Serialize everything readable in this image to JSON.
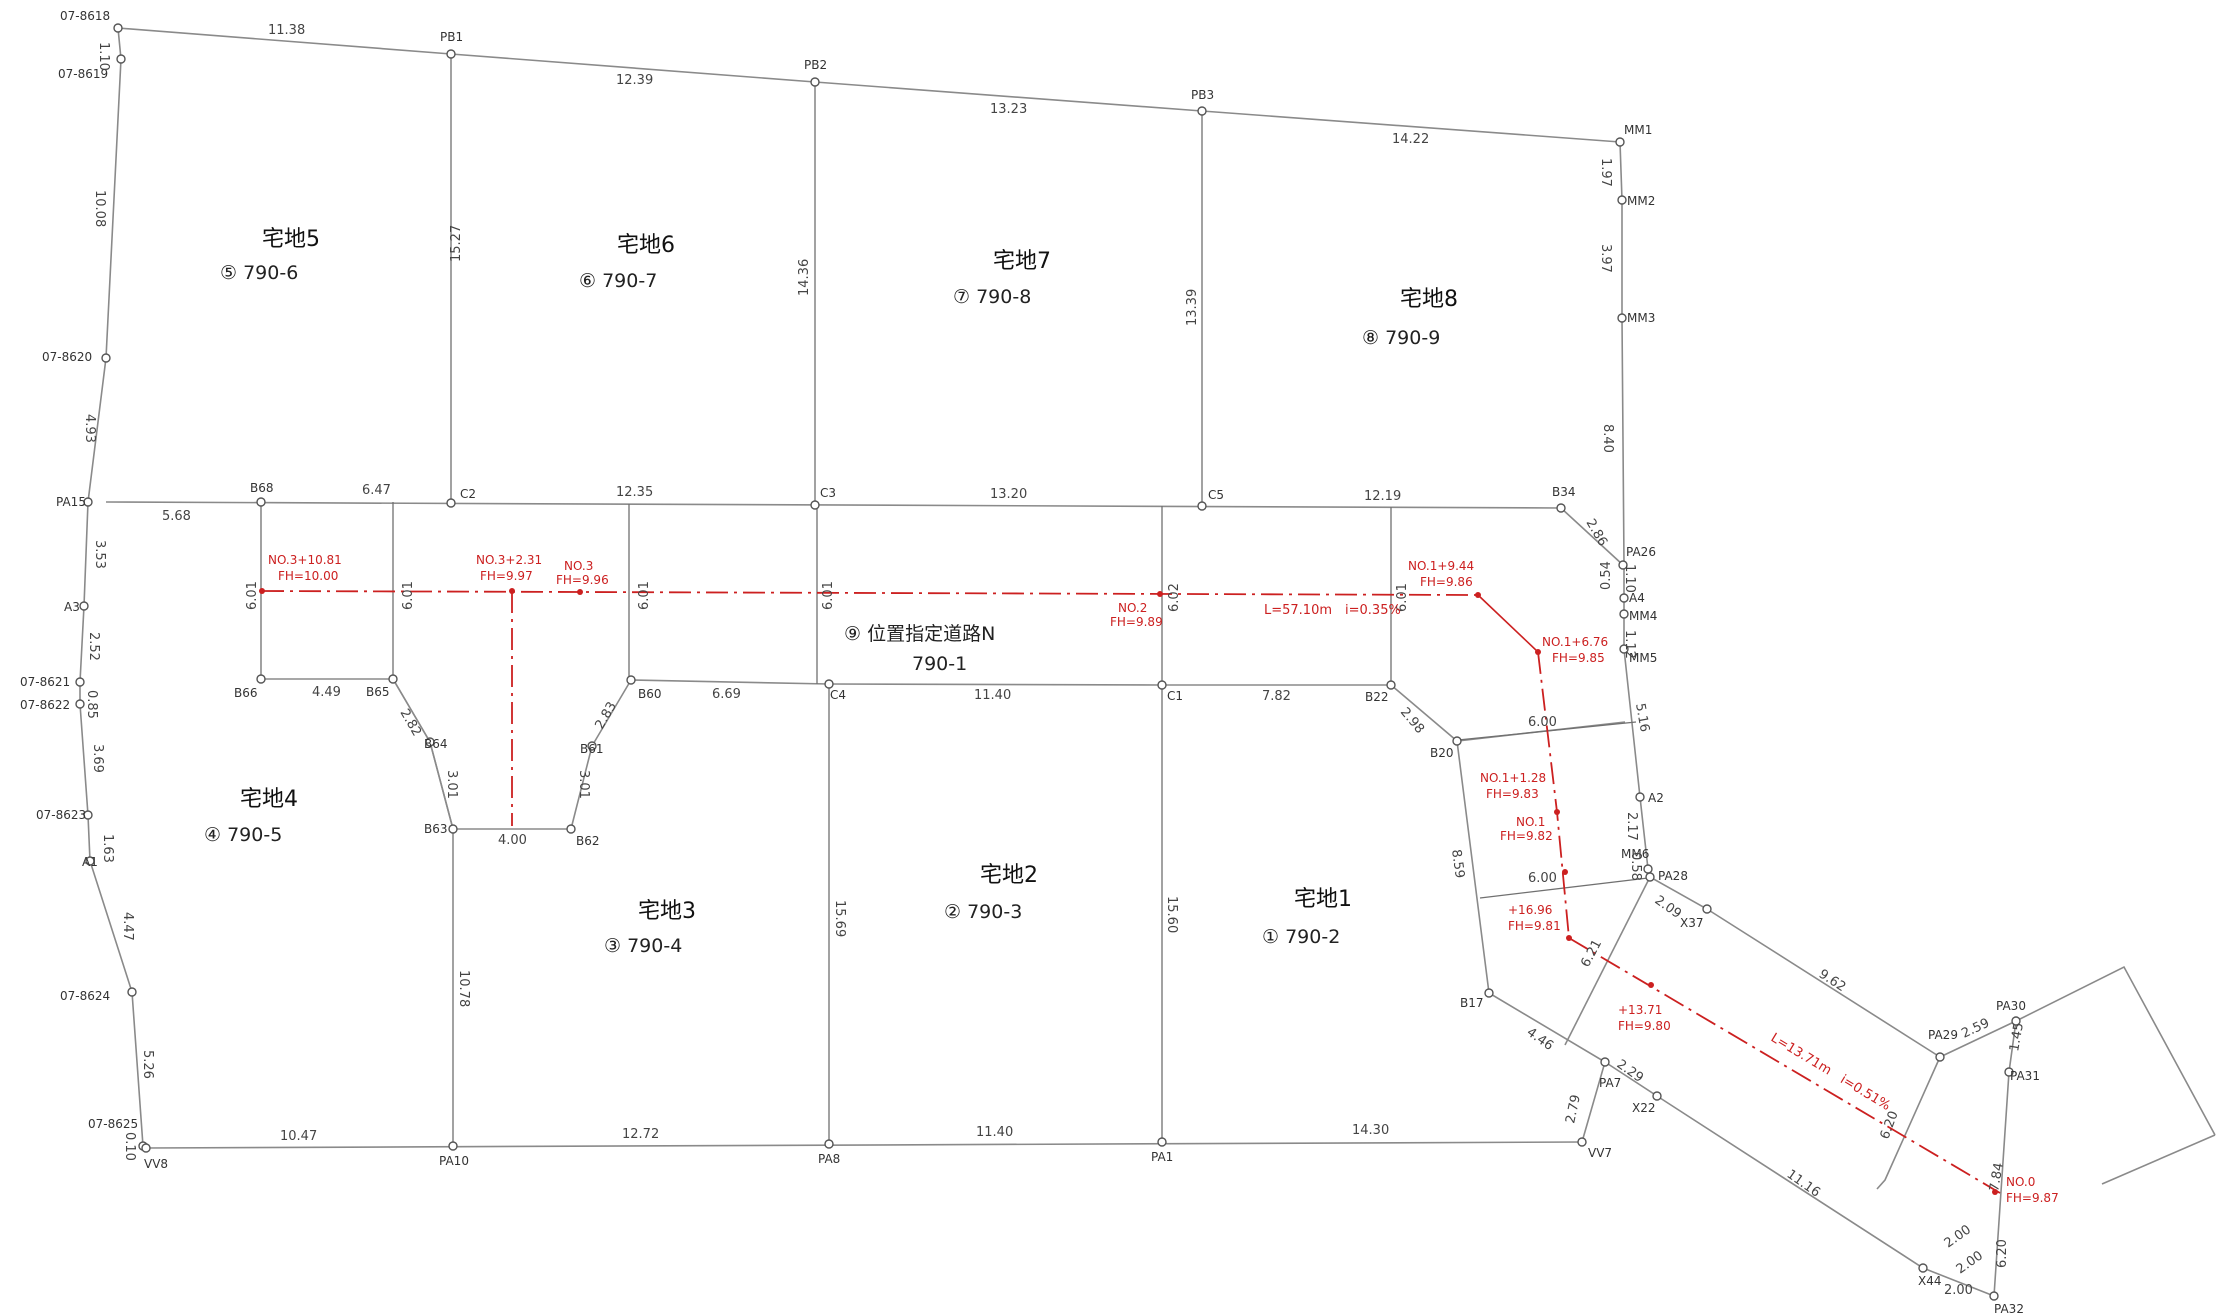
{
  "points": [
    "07-8618",
    "07-8619",
    "07-8620",
    "PA15",
    "A3",
    "07-8621",
    "07-8622",
    "07-8623",
    "A1",
    "07-8624",
    "07-8625",
    "VV8",
    "PB1",
    "PB2",
    "PB3",
    "MM1",
    "MM2",
    "MM3",
    "B34",
    "PA26",
    "A4",
    "MM4",
    "MM5",
    "A2",
    "MM6",
    "PA28",
    "B68",
    "C2",
    "C3",
    "C5",
    "B66",
    "B65",
    "B64",
    "B63",
    "B62",
    "B61",
    "B60",
    "C4",
    "C1",
    "B22",
    "B20",
    "B17",
    "PA10",
    "PA8",
    "PA1",
    "VV7",
    "PA7",
    "X22",
    "X37",
    "PA29",
    "PA30",
    "PA31",
    "X44",
    "PA32"
  ],
  "dimensions": [
    "11.38",
    "12.39",
    "13.23",
    "14.22",
    "1.10",
    "10.08",
    "4.93",
    "3.53",
    "2.52",
    "0.85",
    "3.69",
    "1.63",
    "4.47",
    "5.26",
    "0.10",
    "15.27",
    "14.36",
    "13.39",
    "1.97",
    "3.97",
    "8.40",
    "2.86",
    "1.10",
    "0.54",
    "1.12",
    "5.16",
    "2.17",
    "0.58",
    "5.68",
    "6.47",
    "12.35",
    "13.20",
    "12.19",
    "6.01",
    "6.01",
    "6.01",
    "6.01",
    "6.02",
    "6.01",
    "4.49",
    "2.82",
    "3.01",
    "4.00",
    "3.01",
    "2.83",
    "6.69",
    "11.40",
    "7.82",
    "2.98",
    "6.00",
    "8.59",
    "6.00",
    "10.78",
    "15.69",
    "15.60",
    "10.47",
    "12.72",
    "11.40",
    "14.30",
    "2.09",
    "9.62",
    "4.46",
    "2.29",
    "2.79",
    "6.21",
    "11.16",
    "6.20",
    "2.59",
    "1.45",
    "7.84",
    "2.00",
    "2.00",
    "2.00",
    "6.20"
  ],
  "lots": [
    {
      "name": "宅地5",
      "no": "⑤ 790-6"
    },
    {
      "name": "宅地6",
      "no": "⑥ 790-7"
    },
    {
      "name": "宅地7",
      "no": "⑦ 790-8"
    },
    {
      "name": "宅地8",
      "no": "⑧ 790-9"
    },
    {
      "name": "宅地4",
      "no": "④ 790-5"
    },
    {
      "name": "宅地3",
      "no": "③ 790-4"
    },
    {
      "name": "宅地2",
      "no": "② 790-3"
    },
    {
      "name": "宅地1",
      "no": "① 790-2"
    }
  ],
  "road": {
    "name": "⑨ 位置指定道路N",
    "no": "790-1"
  },
  "stations": [
    {
      "name": "NO.3+10.81",
      "fh": "FH=10.00"
    },
    {
      "name": "NO.3+2.31",
      "fh": "FH=9.97"
    },
    {
      "name": "NO.3",
      "fh": "FH=9.96"
    },
    {
      "name": "NO.2",
      "fh": "FH=9.89"
    },
    {
      "name": "NO.1+9.44",
      "fh": "FH=9.86"
    },
    {
      "name": "NO.1+6.76",
      "fh": "FH=9.85"
    },
    {
      "name": "NO.1+1.28",
      "fh": "FH=9.83"
    },
    {
      "name": "NO.1",
      "fh": "FH=9.82"
    },
    {
      "name": "+16.96",
      "fh": "FH=9.81"
    },
    {
      "name": "+13.71",
      "fh": "FH=9.80"
    },
    {
      "name": "NO.0",
      "fh": "FH=9.87"
    }
  ],
  "grades": [
    "L=57.10m　i=0.35%",
    "L=13.71m　i=0.51%"
  ]
}
